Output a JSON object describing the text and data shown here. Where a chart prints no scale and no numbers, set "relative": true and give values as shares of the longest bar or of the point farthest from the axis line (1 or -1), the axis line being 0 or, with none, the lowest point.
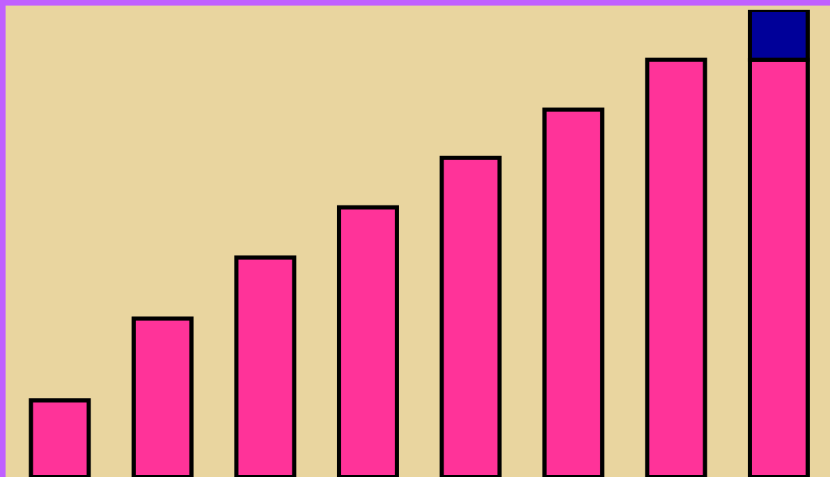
{
  "chart_data": {
    "type": "bar",
    "relative": true,
    "stacked": true,
    "categories": [
      null,
      null,
      null,
      null,
      null,
      null,
      null,
      null
    ],
    "series": [
      {
        "color": "#ff3399",
        "values": [
          0.164,
          0.339,
          0.47,
          0.577,
          0.683,
          0.786,
          0.893,
          0.893
        ]
      },
      {
        "color": "#000099",
        "values": [
          null,
          null,
          null,
          null,
          null,
          null,
          null,
          0.107
        ]
      }
    ]
  }
}
